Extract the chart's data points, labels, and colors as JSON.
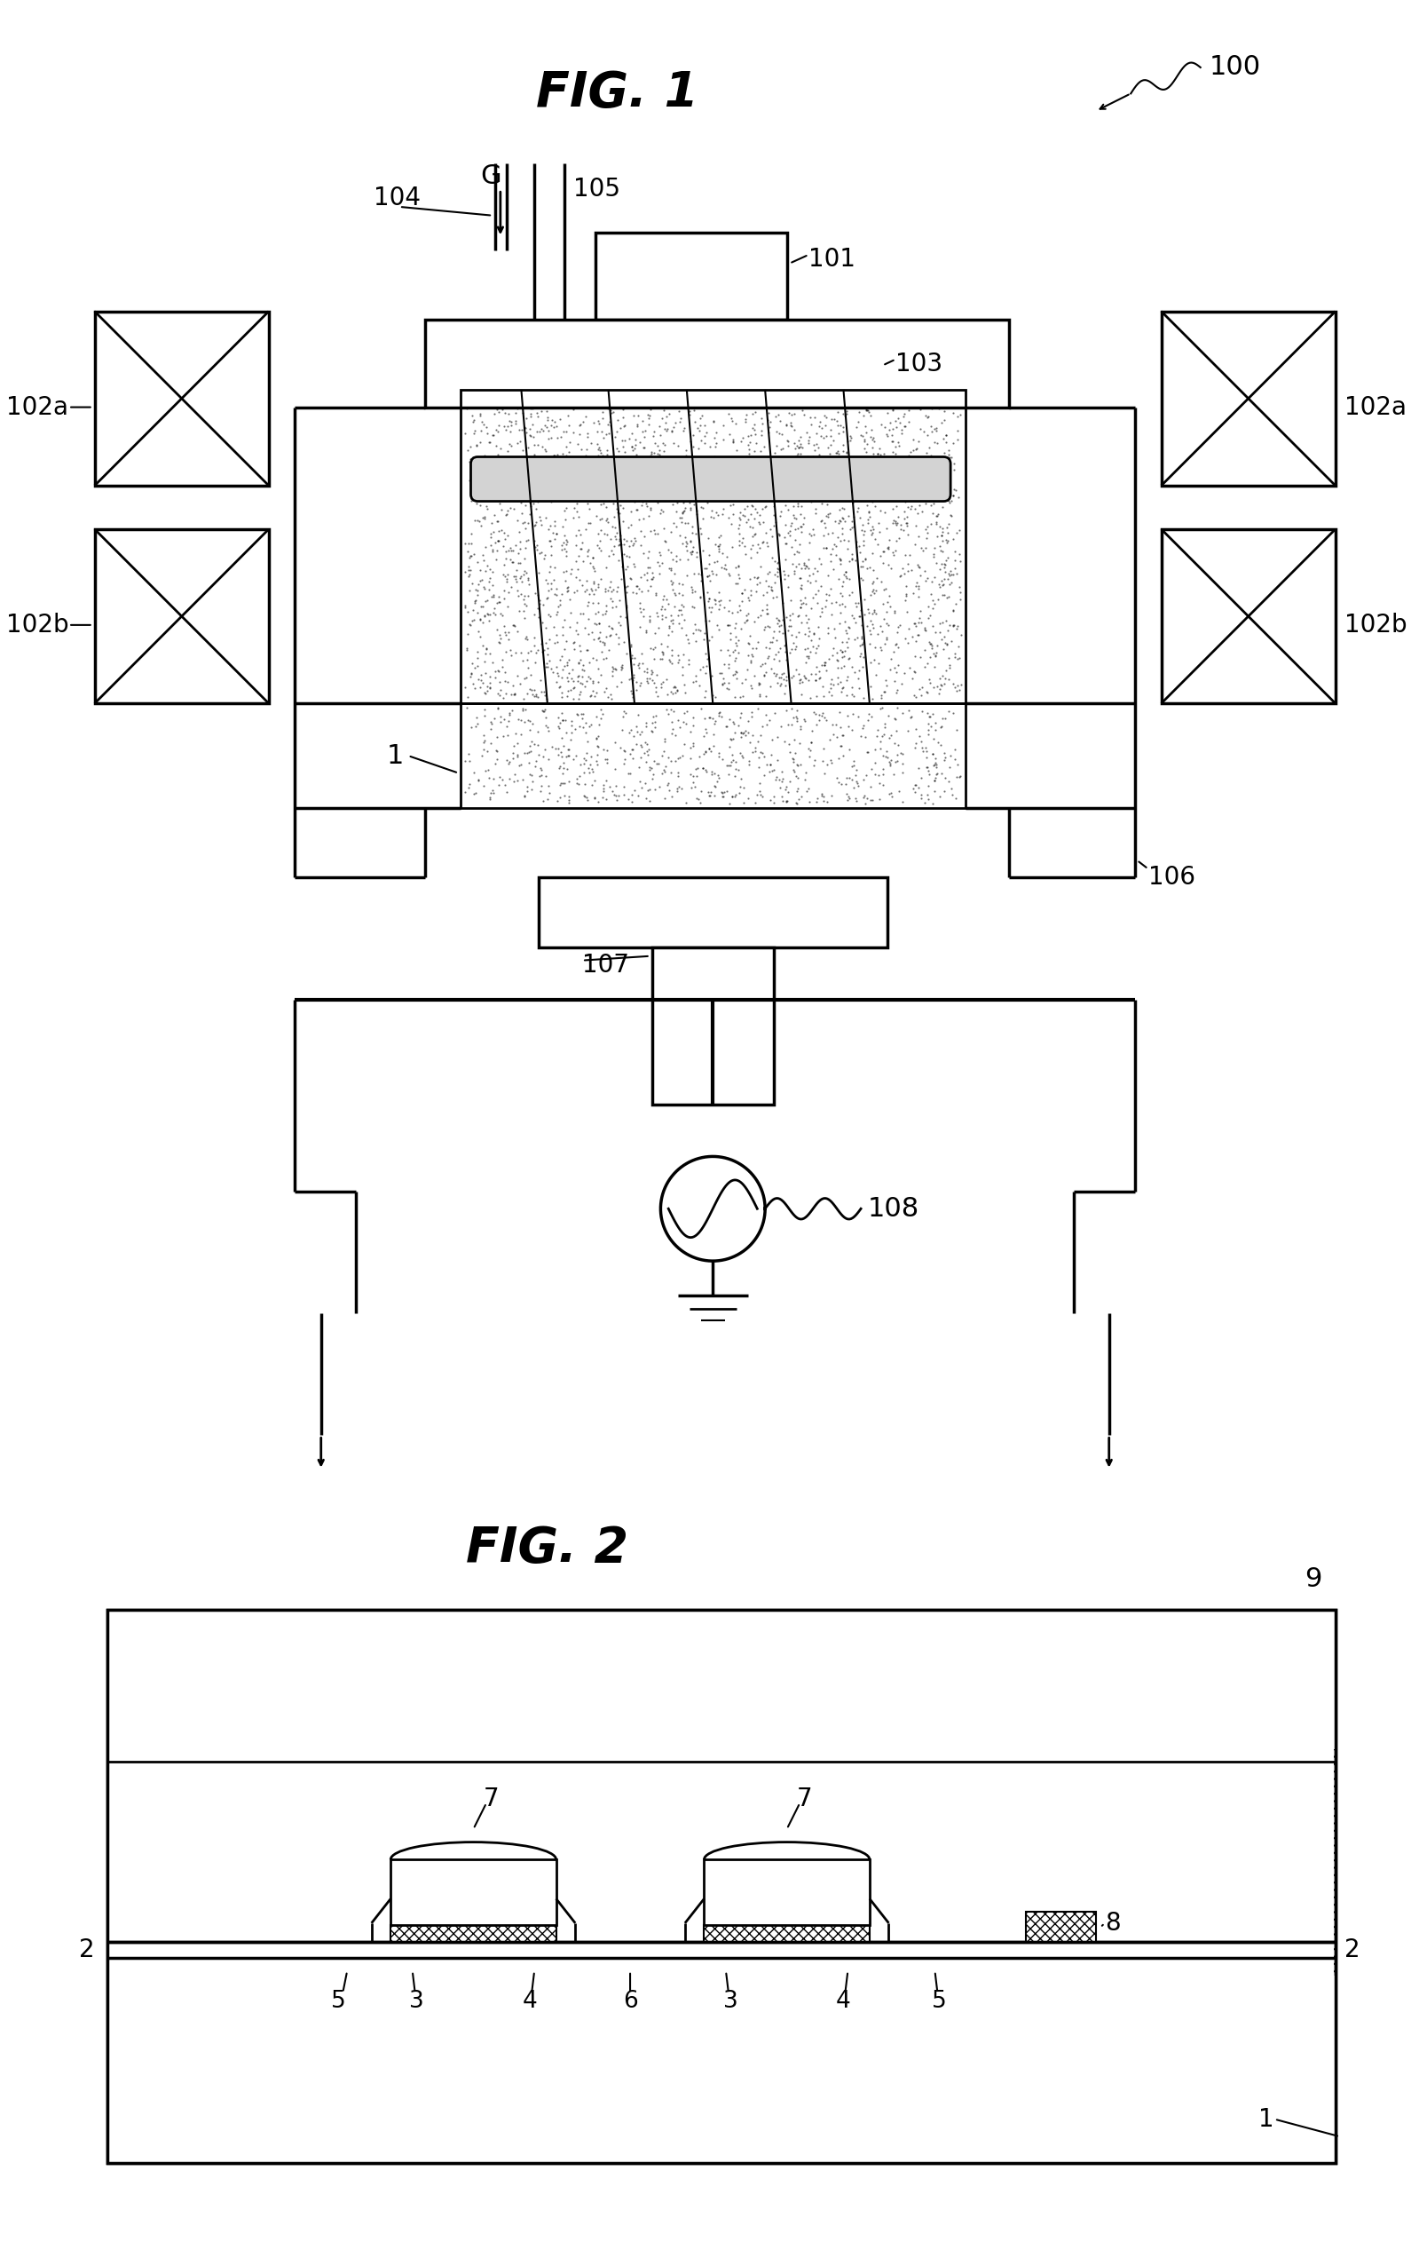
{
  "fig_title1": "FIG. 1",
  "fig_title2": "FIG. 2",
  "ref_100": "100",
  "ref_101": "101",
  "ref_102a": "102a",
  "ref_102b": "102b",
  "ref_103": "103",
  "ref_104": "104",
  "ref_105": "105",
  "ref_106": "106",
  "ref_107": "107",
  "ref_108": "108",
  "ref_G": "G",
  "ref_1": "1",
  "ref_2": "2",
  "ref_3": "3",
  "ref_4": "4",
  "ref_5": "5",
  "ref_6": "6",
  "ref_7": "7",
  "ref_8": "8",
  "ref_9": "9",
  "bg_color": "#ffffff",
  "line_color": "#000000"
}
